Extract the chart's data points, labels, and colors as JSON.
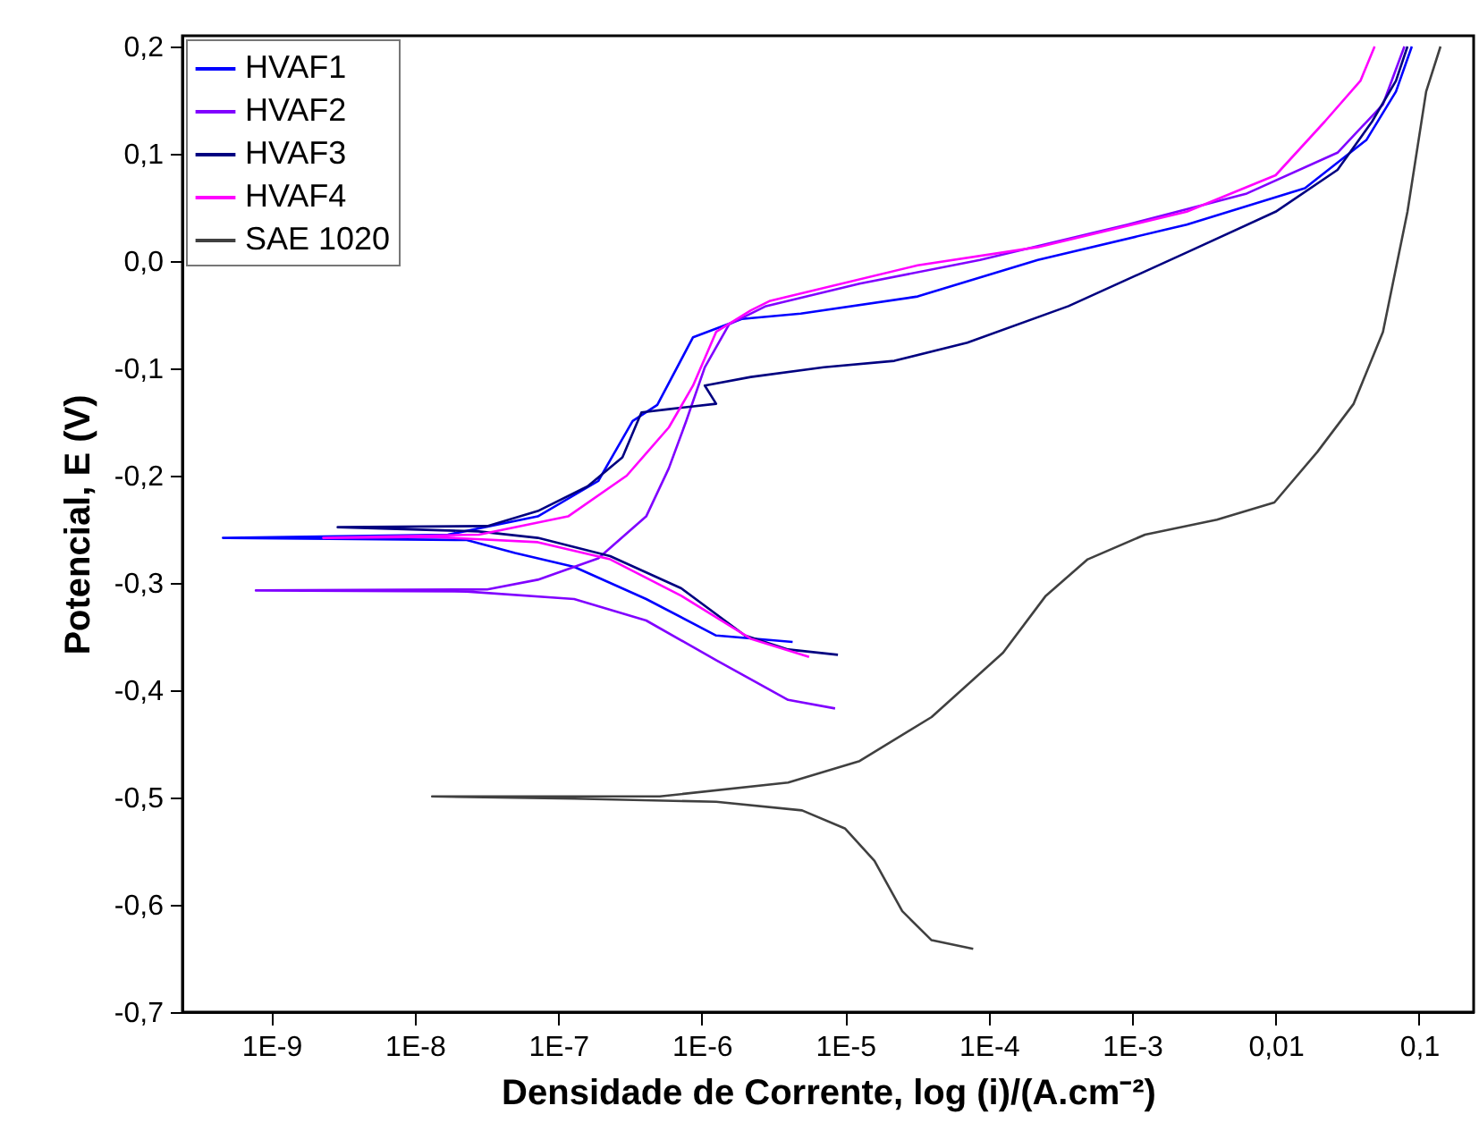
{
  "chart_data": {
    "type": "line",
    "xlabel": "Densidade de Corrente, log (i)/(A.cm⁻²)",
    "ylabel": "Potencial, E (V)",
    "log": "x",
    "xlim": [
      2.4e-10,
      0.24
    ],
    "ylim": [
      -0.7,
      0.21
    ],
    "xticks": [
      {
        "value": 1e-09,
        "label": "1E-9"
      },
      {
        "value": 1e-08,
        "label": "1E-8"
      },
      {
        "value": 1e-07,
        "label": "1E-7"
      },
      {
        "value": 1e-06,
        "label": "1E-6"
      },
      {
        "value": 1e-05,
        "label": "1E-5"
      },
      {
        "value": 0.0001,
        "label": "1E-4"
      },
      {
        "value": 0.001,
        "label": "1E-3"
      },
      {
        "value": 0.01,
        "label": "0,01"
      },
      {
        "value": 0.1,
        "label": "0,1"
      }
    ],
    "yticks": [
      {
        "value": -0.7,
        "label": "-0,7"
      },
      {
        "value": -0.6,
        "label": "-0,6"
      },
      {
        "value": -0.5,
        "label": "-0,5"
      },
      {
        "value": -0.4,
        "label": "-0,4"
      },
      {
        "value": -0.3,
        "label": "-0,3"
      },
      {
        "value": -0.2,
        "label": "-0,2"
      },
      {
        "value": -0.1,
        "label": "-0,1"
      },
      {
        "value": 0,
        "label": "0,0"
      },
      {
        "value": 0.1,
        "label": "0,1"
      },
      {
        "value": 0.2,
        "label": "0,2"
      }
    ],
    "grid": false,
    "legend": "top left",
    "marker": "none",
    "line_style": "solid",
    "series": [
      {
        "name": "HVAF1",
        "color": "#0000ff",
        "x": [
          4.3e-06,
          1.26e-06,
          4.1e-07,
          1.29e-07,
          5e-08,
          2.3e-08,
          4.6e-10,
          1.7e-08,
          7.2e-08,
          1.9e-07,
          3.3e-07,
          4.9e-07,
          8.7e-07,
          1.9e-06,
          4.9e-06,
          3.2e-05,
          0.00022,
          0.0024,
          0.016,
          0.043,
          0.069,
          0.089
        ],
        "values": [
          -0.355,
          -0.349,
          -0.315,
          -0.285,
          -0.272,
          -0.26,
          -0.258,
          -0.255,
          -0.238,
          -0.205,
          -0.149,
          -0.134,
          -0.071,
          -0.054,
          -0.049,
          -0.033,
          0.001,
          0.034,
          0.068,
          0.113,
          0.158,
          0.2
        ]
      },
      {
        "name": "HVAF2",
        "color": "#8000ff",
        "x": [
          8.5e-06,
          4e-06,
          1.26e-06,
          4.1e-07,
          1.29e-07,
          2.3e-08,
          7.8e-10,
          3.2e-08,
          7.2e-08,
          1.9e-07,
          4.1e-07,
          5.9e-07,
          7.8e-07,
          1.05e-06,
          1.55e-06,
          2.8e-06,
          1.26e-05,
          8.7e-05,
          0.00093,
          0.0063,
          0.027,
          0.056,
          0.079
        ],
        "values": [
          -0.417,
          -0.409,
          -0.372,
          -0.335,
          -0.315,
          -0.308,
          -0.307,
          -0.306,
          -0.297,
          -0.277,
          -0.238,
          -0.193,
          -0.149,
          -0.099,
          -0.059,
          -0.042,
          -0.021,
          0.001,
          0.034,
          0.063,
          0.101,
          0.146,
          0.2
        ]
      },
      {
        "name": "HVAF3",
        "color": "#000080",
        "x": [
          8.9e-06,
          4e-06,
          2e-06,
          7.2e-07,
          2.3e-07,
          7.2e-08,
          2.8e-08,
          2.9e-09,
          3.2e-08,
          7.2e-08,
          1.6e-07,
          2.8e-07,
          3.8e-07,
          5.9e-07,
          1.26e-06,
          1.05e-06,
          2.2e-06,
          7.1e-06,
          2.2e-05,
          7.1e-05,
          0.00036,
          0.0024,
          0.01,
          0.027,
          0.047,
          0.069,
          0.083
        ],
        "values": [
          -0.367,
          -0.362,
          -0.349,
          -0.305,
          -0.275,
          -0.258,
          -0.252,
          -0.248,
          -0.247,
          -0.233,
          -0.21,
          -0.183,
          -0.141,
          -0.138,
          -0.133,
          -0.116,
          -0.108,
          -0.099,
          -0.093,
          -0.076,
          -0.042,
          0.008,
          0.046,
          0.085,
          0.13,
          0.168,
          0.2
        ]
      },
      {
        "name": "HVAF4",
        "color": "#ff00ff",
        "x": [
          5.6e-06,
          2.2e-06,
          7.2e-07,
          2.3e-07,
          7.2e-08,
          1.29e-08,
          2.3e-09,
          2.8e-08,
          1.17e-07,
          3e-07,
          5.9e-07,
          8.7e-07,
          1.26e-06,
          2.2e-06,
          3e-06,
          3.2e-05,
          0.00022,
          0.0024,
          0.01,
          0.022,
          0.039,
          0.049
        ],
        "values": [
          -0.369,
          -0.352,
          -0.312,
          -0.278,
          -0.262,
          -0.257,
          -0.258,
          -0.255,
          -0.238,
          -0.2,
          -0.155,
          -0.116,
          -0.066,
          -0.046,
          -0.037,
          -0.004,
          0.013,
          0.046,
          0.08,
          0.13,
          0.168,
          0.2
        ]
      },
      {
        "name": "SAE 1020",
        "color": "#404040",
        "x": [
          7.8e-05,
          4e-05,
          2.5e-05,
          1.6e-05,
          1e-05,
          5e-06,
          1.26e-06,
          1.29e-07,
          1.32e-08,
          5.1e-07,
          4e-06,
          1.26e-05,
          4e-05,
          0.000126,
          0.00025,
          0.00049,
          0.00123,
          0.0039,
          0.0098,
          0.0195,
          0.035,
          0.056,
          0.083,
          0.112,
          0.141
        ],
        "values": [
          -0.641,
          -0.633,
          -0.606,
          -0.559,
          -0.529,
          -0.512,
          -0.504,
          -0.501,
          -0.499,
          -0.499,
          -0.486,
          -0.466,
          -0.425,
          -0.365,
          -0.312,
          -0.278,
          -0.255,
          -0.241,
          -0.225,
          -0.178,
          -0.133,
          -0.066,
          0.046,
          0.158,
          0.2
        ]
      }
    ]
  }
}
